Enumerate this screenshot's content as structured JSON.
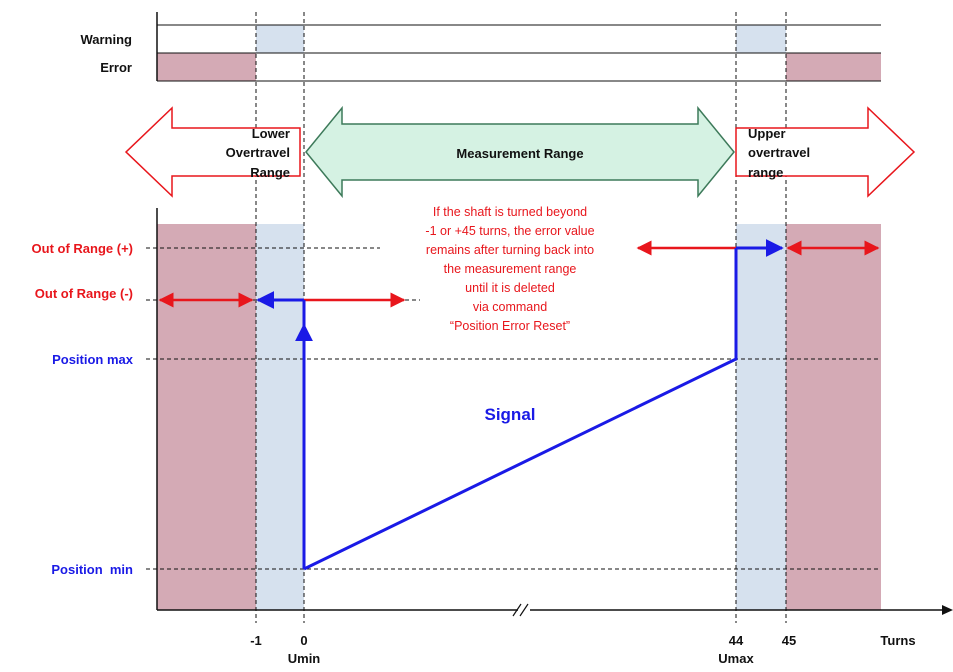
{
  "status_rows": {
    "warning_label": "Warning",
    "error_label": "Error"
  },
  "ranges": {
    "lower_line1": "Lower",
    "lower_line2": "Overtravel",
    "lower_line3": "Range",
    "measurement": "Measurement Range",
    "upper_line1": "Upper",
    "upper_line2": "overtravel",
    "upper_line3": "range"
  },
  "y_labels": {
    "out_plus": "Out of Range (+)",
    "out_minus": "Out of Range (-)",
    "pos_max": "Position max",
    "pos_min": "Position  min"
  },
  "note_lines": [
    "If the shaft is turned beyond",
    "-1 or +45 turns, the error value",
    "remains after turning back into",
    "the measurement range",
    "until it is deleted",
    "via command",
    "“Position Error Reset”"
  ],
  "signal_label": "Signal",
  "x_axis": {
    "tick_m1": "-1",
    "tick_0": "0",
    "tick_44": "44",
    "tick_45": "45",
    "umin": "Umin",
    "umax": "Umax",
    "turns": "Turns"
  },
  "colors": {
    "error_fill": "#d4aab5",
    "warning_fill": "#d6e1ee",
    "measurement_fill": "#d5f2e3",
    "measurement_stroke": "#3d7a5a",
    "overtravel_stroke": "#e8161c",
    "signal": "#1a1ae6",
    "red_label": "#e8161c",
    "blue_label": "#1a1ae6"
  }
}
